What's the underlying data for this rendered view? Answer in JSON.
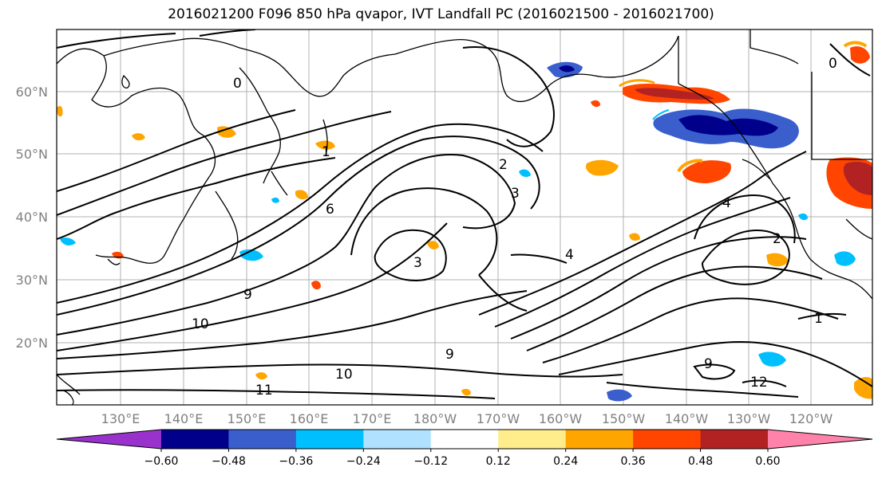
{
  "title": "2016021200 F096 850 hPa qvapor, IVT Landfall PC (2016021500 - 2016021700)",
  "lat_labels": [
    "60°N",
    "50°N",
    "40°N",
    "30°N",
    "20°N"
  ],
  "lon_labels": [
    "130°E",
    "140°E",
    "150°E",
    "160°E",
    "170°E",
    "180°W",
    "170°W",
    "160°W",
    "150°W",
    "140°W",
    "130°W",
    "120°W"
  ],
  "colorbar": {
    "ticks": [
      "−0.60",
      "−0.48",
      "−0.36",
      "−0.24",
      "−0.12",
      "0.12",
      "0.24",
      "0.36",
      "0.48",
      "0.60"
    ],
    "colors": [
      "#9932cc",
      "#00008b",
      "#3a5fcd",
      "#00bfff",
      "#b0e2ff",
      "#ffffff",
      "#ffec8b",
      "#ffa500",
      "#ff4500",
      "#b22222",
      "#ff82ab"
    ]
  },
  "contour_labels": [
    "0",
    "1",
    "2",
    "3",
    "4",
    "6",
    "9",
    "10",
    "11",
    "12"
  ],
  "colors": {
    "negative_strong": "#00008b",
    "negative_mid": "#3a5fcd",
    "negative_light": "#00bfff",
    "positive_light": "#ffec8b",
    "positive_mid": "#ffa500",
    "positive_strong": "#ff4500",
    "positive_max": "#b22222"
  }
}
